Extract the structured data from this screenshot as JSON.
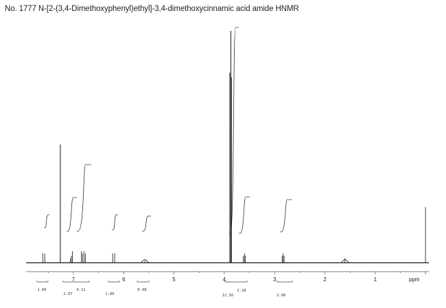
{
  "title": "No. 1777 N-[2-(3,4-Dimethoxyphenyl)ethyl]-3,4-dimethoxycinnamic acid amide HNMR",
  "chart_data": {
    "type": "line",
    "xlabel": "ppm",
    "xlim": [
      7.85,
      -0.2
    ],
    "x_direction": "reversed",
    "x_ticks": [
      7,
      6,
      5,
      4,
      3,
      2,
      1
    ],
    "grid": false,
    "peaks": [
      {
        "ppm": 7.61,
        "height": 0.04
      },
      {
        "ppm": 7.57,
        "height": 0.04
      },
      {
        "ppm": 7.26,
        "height": 0.51
      },
      {
        "ppm": 7.06,
        "height": 0.02
      },
      {
        "ppm": 7.04,
        "height": 0.03
      },
      {
        "ppm": 7.02,
        "height": 0.05
      },
      {
        "ppm": 6.84,
        "height": 0.05
      },
      {
        "ppm": 6.82,
        "height": 0.04
      },
      {
        "ppm": 6.79,
        "height": 0.05
      },
      {
        "ppm": 6.76,
        "height": 0.04
      },
      {
        "ppm": 6.22,
        "height": 0.04
      },
      {
        "ppm": 6.18,
        "height": 0.04
      },
      {
        "ppm": 5.58,
        "height": 0.01
      },
      {
        "ppm": 3.89,
        "height": 0.82
      },
      {
        "ppm": 3.87,
        "height": 1.0
      },
      {
        "ppm": 3.86,
        "height": 0.8
      },
      {
        "ppm": 3.62,
        "height": 0.03
      },
      {
        "ppm": 3.6,
        "height": 0.04
      },
      {
        "ppm": 3.58,
        "height": 0.03
      },
      {
        "ppm": 2.85,
        "height": 0.03
      },
      {
        "ppm": 2.83,
        "height": 0.04
      },
      {
        "ppm": 2.81,
        "height": 0.03
      },
      {
        "ppm": 1.6,
        "height": 0.02
      },
      {
        "ppm": 0.0,
        "height": 0.24
      }
    ],
    "integrals": [
      {
        "from": 7.7,
        "to": 7.5,
        "label": "1.00"
      },
      {
        "from": 7.15,
        "to": 6.55,
        "label": "2.07"
      },
      {
        "from": 7.15,
        "to": 6.55,
        "label": "4.11"
      },
      {
        "from": 6.3,
        "to": 6.1,
        "label": "1.00"
      },
      {
        "from": 5.7,
        "to": 5.45,
        "label": "0.98"
      },
      {
        "from": 4.0,
        "to": 3.5,
        "label": "12.56"
      },
      {
        "from": 4.0,
        "to": 3.5,
        "label": "2.18"
      },
      {
        "from": 3.0,
        "to": 2.7,
        "label": "2.06"
      }
    ]
  }
}
